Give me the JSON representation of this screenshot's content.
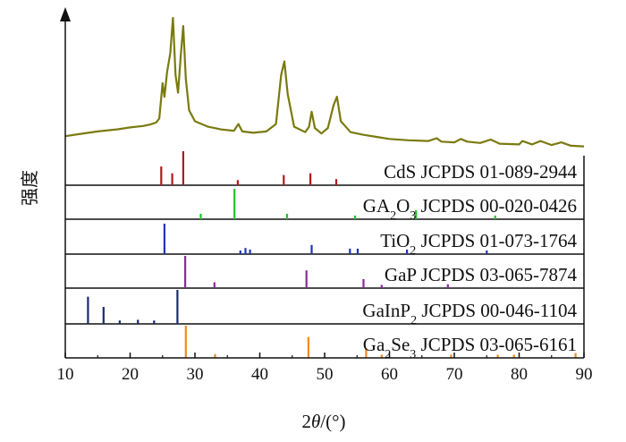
{
  "chart_data": {
    "type": "line",
    "ylabel": "强度",
    "xlabel_parts": {
      "pre": "2",
      "italic": "θ",
      "post": "/(°)"
    },
    "xlim": [
      10,
      90
    ],
    "xticks": [
      10,
      20,
      30,
      40,
      50,
      60,
      70,
      80,
      90
    ],
    "x_tick_labels": [
      "10",
      "20",
      "30",
      "40",
      "50",
      "60",
      "70",
      "80",
      "90"
    ],
    "grid": false,
    "series": [
      {
        "color": "#7a7a10",
        "x": [
          10,
          12,
          15,
          18,
          20,
          22,
          23,
          24,
          24.5,
          25.0,
          25.3,
          25.7,
          26.2,
          26.6,
          27.0,
          27.4,
          27.8,
          28.2,
          28.6,
          29.1,
          30,
          32,
          34,
          36,
          36.7,
          37.3,
          39,
          41,
          42.5,
          43.3,
          43.8,
          44.3,
          45.3,
          47,
          47.6,
          48.0,
          48.5,
          49.5,
          50.5,
          51.4,
          51.9,
          52.5,
          54,
          56,
          58,
          60,
          63,
          66,
          67.3,
          68,
          70,
          71,
          72,
          74,
          75.6,
          77,
          80,
          80.5,
          82,
          83.3,
          85,
          86.5,
          88,
          90
        ],
        "y": [
          13,
          14.5,
          16.5,
          18,
          19.5,
          20.5,
          21.5,
          23,
          26,
          52,
          42,
          60,
          74,
          100,
          58,
          45,
          72,
          94,
          55,
          32,
          24,
          20,
          18,
          17,
          22,
          16.5,
          15.5,
          16.5,
          22,
          58,
          68,
          44,
          20,
          16,
          20,
          31,
          19,
          15,
          19,
          36,
          42,
          24,
          16,
          14,
          12.5,
          11,
          10,
          9.5,
          11.5,
          9,
          8.5,
          11,
          9,
          8,
          10.5,
          7.5,
          7,
          9.5,
          7,
          9.5,
          6.5,
          8.5,
          6,
          5.5
        ]
      }
    ],
    "references": [
      {
        "label_parts": [
          "CdS JCPDS 01-089-2944"
        ],
        "color": "#b0191e",
        "peaks": [
          [
            24.8,
            55
          ],
          [
            26.5,
            35
          ],
          [
            28.2,
            100
          ],
          [
            36.6,
            15
          ],
          [
            43.7,
            30
          ],
          [
            47.8,
            35
          ],
          [
            51.8,
            18
          ]
        ]
      },
      {
        "label_parts": [
          "GA",
          "2",
          "O",
          "3",
          " JCPDS 00-020-0426"
        ],
        "color": "#22c22e",
        "peaks": [
          [
            30.9,
            18
          ],
          [
            36.1,
            100
          ],
          [
            44.2,
            18
          ],
          [
            54.7,
            12
          ],
          [
            64.1,
            30
          ],
          [
            76.3,
            12
          ]
        ]
      },
      {
        "label_parts": [
          "TiO",
          "2",
          " JCPDS 01-073-1764"
        ],
        "color": "#1f36b4",
        "peaks": [
          [
            25.3,
            100
          ],
          [
            37.0,
            12
          ],
          [
            37.8,
            20
          ],
          [
            38.5,
            15
          ],
          [
            48.0,
            30
          ],
          [
            53.9,
            18
          ],
          [
            55.1,
            18
          ],
          [
            62.7,
            15
          ],
          [
            75.0,
            12
          ]
        ]
      },
      {
        "label_parts": [
          "GaP JCPDS 03-065-7874"
        ],
        "color": "#8a2a9a",
        "peaks": [
          [
            28.5,
            100
          ],
          [
            33.0,
            18
          ],
          [
            47.2,
            55
          ],
          [
            56.0,
            28
          ],
          [
            58.8,
            10
          ],
          [
            69.0,
            12
          ]
        ]
      },
      {
        "label_parts": [
          "GaInP",
          "2",
          " JCPDS 00-046-1104"
        ],
        "color": "#1c2a6e",
        "peaks": [
          [
            13.5,
            80
          ],
          [
            15.9,
            50
          ],
          [
            18.4,
            10
          ],
          [
            21.2,
            12
          ],
          [
            23.7,
            10
          ],
          [
            27.3,
            100
          ]
        ]
      },
      {
        "label_parts": [
          "Ga",
          "2",
          "Se",
          "3",
          " JCPDS 03-065-6161"
        ],
        "color": "#f08a24",
        "peaks": [
          [
            28.6,
            100
          ],
          [
            33.1,
            12
          ],
          [
            47.5,
            65
          ],
          [
            56.4,
            30
          ],
          [
            58.8,
            10
          ],
          [
            69.5,
            10
          ],
          [
            76.7,
            10
          ],
          [
            79.2,
            10
          ],
          [
            88.7,
            15
          ]
        ]
      }
    ]
  }
}
